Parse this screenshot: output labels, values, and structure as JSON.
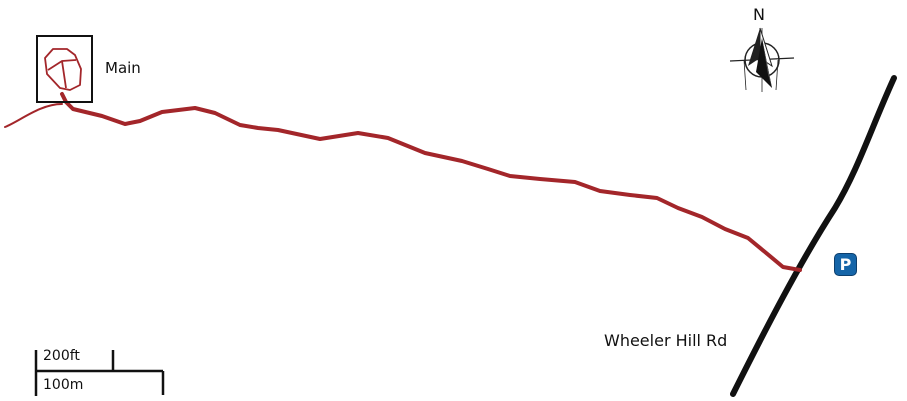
{
  "map": {
    "features": {
      "building_label": "Main",
      "road_label": "Wheeler Hill Rd",
      "parking_symbol": "P"
    },
    "compass": {
      "north_label": "N"
    },
    "scale_bar": {
      "imperial_label": "200ft",
      "metric_label": "100m"
    },
    "icons": {
      "compass": "compass-rose-icon",
      "parking": "parking-icon",
      "building": "building-outline-icon"
    },
    "colors": {
      "trail": "#a3262a",
      "building_outline": "#a3262a",
      "road": "#111111",
      "parking_background": "#1565a8",
      "parking_text": "#ffffff"
    }
  }
}
